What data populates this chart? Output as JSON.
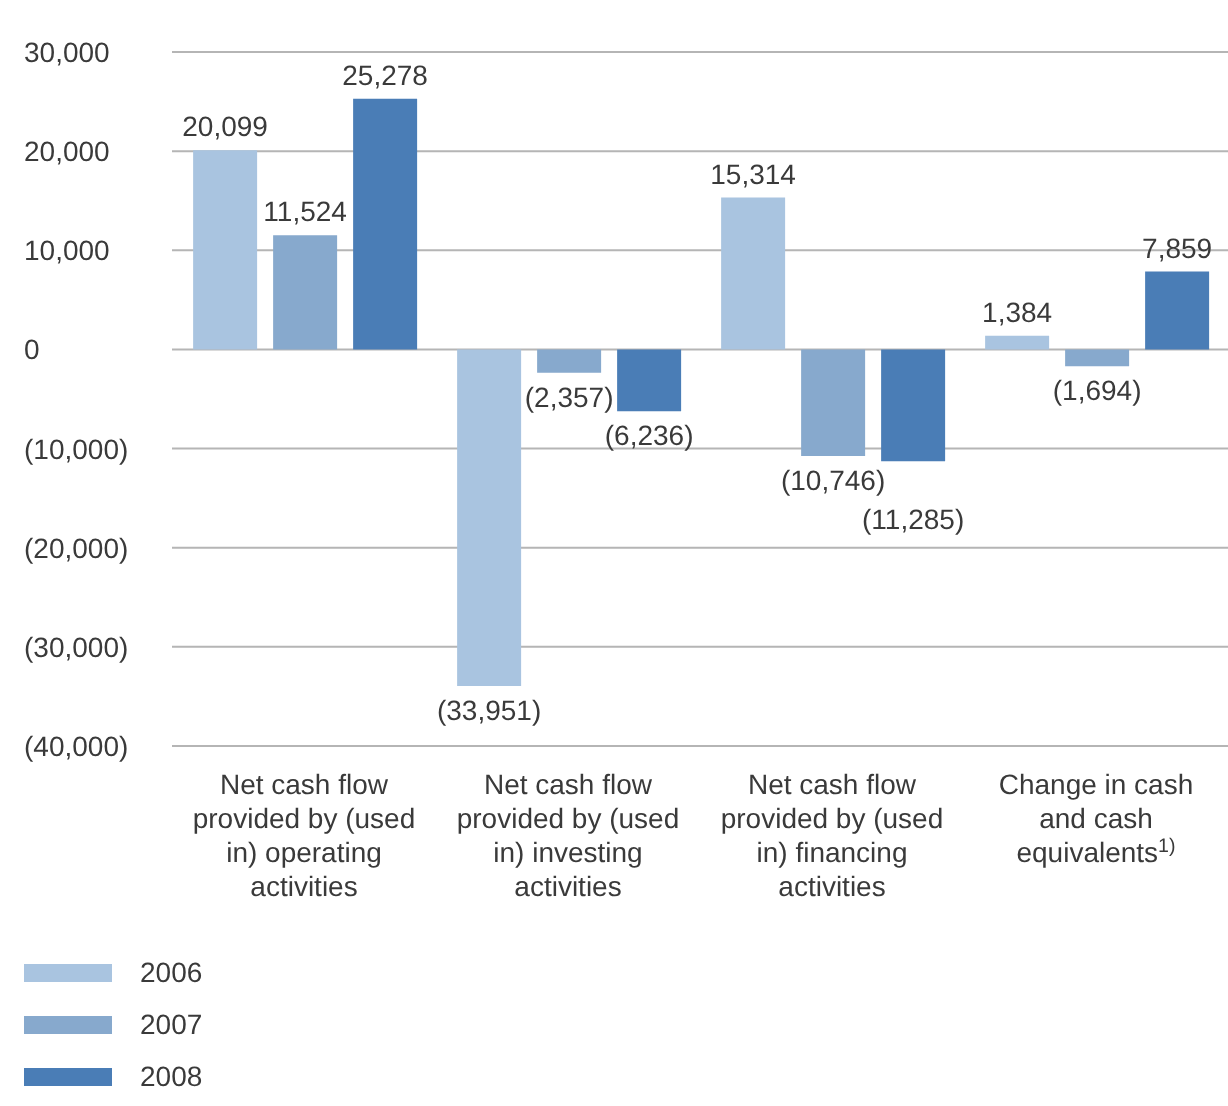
{
  "chart_data": {
    "type": "bar",
    "categories": [
      "Net cash flow provided by (used in) operating activities",
      "Net cash flow provided by (used in) investing activities",
      "Net cash flow provided by (used in) financing activities",
      "Change in cash and cash equivalents$^{1)}$"
    ],
    "series": [
      {
        "name": "2006",
        "color": "#a9c4e0",
        "values": [
          20099,
          -33951,
          15314,
          1384
        ],
        "value_labels": [
          "20,099",
          "(33,951)",
          "15,314",
          "1,384"
        ]
      },
      {
        "name": "2007",
        "color": "#87a9cd",
        "values": [
          11524,
          -2357,
          -10746,
          -1694
        ],
        "value_labels": [
          "11,524",
          "(2,357)",
          "(10,746)",
          "(1,694)"
        ]
      },
      {
        "name": "2008",
        "color": "#4a7db6",
        "values": [
          25278,
          -6236,
          -11285,
          7859
        ],
        "value_labels": [
          "25,278",
          "(6,236)",
          "(11,285)",
          "7,859"
        ]
      }
    ],
    "ylim": [
      -40000,
      30000
    ],
    "yticks": [
      {
        "value": 30000,
        "label": "30,000"
      },
      {
        "value": 20000,
        "label": "20,000"
      },
      {
        "value": 10000,
        "label": "10,000"
      },
      0,
      {
        "value": -10000,
        "label": "(10,000)"
      },
      {
        "value": -20000,
        "label": "(20,000)"
      },
      {
        "value": -30000,
        "label": "(30,000)"
      },
      {
        "value": -40000,
        "label": "(40,000)"
      }
    ],
    "grid": "y",
    "legend": "bottom left"
  }
}
